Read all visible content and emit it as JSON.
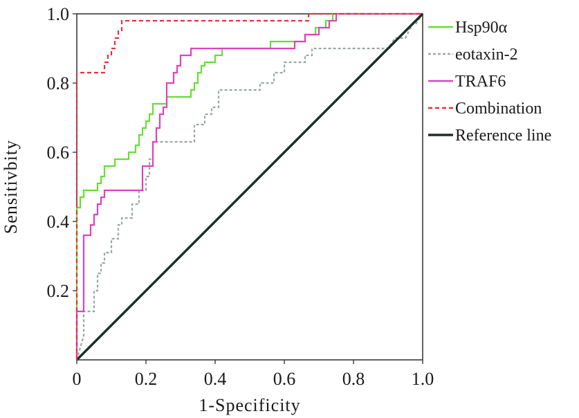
{
  "chart_data": {
    "type": "line",
    "title": "",
    "xlabel": "1-Specificity",
    "ylabel": "Sensitivbity",
    "xlim": [
      0,
      1
    ],
    "ylim": [
      0,
      1
    ],
    "x_ticks": [
      "0",
      "0.2",
      "0.4",
      "0.6",
      "0.8",
      "1.0"
    ],
    "y_ticks": [
      "0.2",
      "0.4",
      "0.6",
      "0.8",
      "1.0"
    ],
    "grid": false,
    "legend_position": "right",
    "series": [
      {
        "name": "Hsp90α",
        "color": "#66dd33",
        "dash": "solid",
        "points": [
          [
            0,
            0
          ],
          [
            0,
            0.44
          ],
          [
            0.01,
            0.44
          ],
          [
            0.01,
            0.47
          ],
          [
            0.02,
            0.47
          ],
          [
            0.02,
            0.49
          ],
          [
            0.06,
            0.49
          ],
          [
            0.06,
            0.51
          ],
          [
            0.07,
            0.51
          ],
          [
            0.07,
            0.53
          ],
          [
            0.08,
            0.53
          ],
          [
            0.08,
            0.56
          ],
          [
            0.11,
            0.56
          ],
          [
            0.11,
            0.58
          ],
          [
            0.15,
            0.58
          ],
          [
            0.15,
            0.6
          ],
          [
            0.17,
            0.6
          ],
          [
            0.17,
            0.62
          ],
          [
            0.18,
            0.62
          ],
          [
            0.18,
            0.65
          ],
          [
            0.19,
            0.65
          ],
          [
            0.19,
            0.67
          ],
          [
            0.2,
            0.67
          ],
          [
            0.2,
            0.69
          ],
          [
            0.21,
            0.69
          ],
          [
            0.21,
            0.71
          ],
          [
            0.22,
            0.71
          ],
          [
            0.22,
            0.74
          ],
          [
            0.26,
            0.74
          ],
          [
            0.26,
            0.76
          ],
          [
            0.27,
            0.76
          ],
          [
            0.27,
            0.76
          ],
          [
            0.33,
            0.76
          ],
          [
            0.33,
            0.78
          ],
          [
            0.34,
            0.78
          ],
          [
            0.34,
            0.8
          ],
          [
            0.35,
            0.8
          ],
          [
            0.35,
            0.83
          ],
          [
            0.36,
            0.83
          ],
          [
            0.36,
            0.85
          ],
          [
            0.37,
            0.85
          ],
          [
            0.37,
            0.86
          ],
          [
            0.4,
            0.86
          ],
          [
            0.4,
            0.88
          ],
          [
            0.42,
            0.88
          ],
          [
            0.42,
            0.9
          ],
          [
            0.56,
            0.9
          ],
          [
            0.56,
            0.92
          ],
          [
            0.66,
            0.92
          ],
          [
            0.66,
            0.94
          ],
          [
            0.69,
            0.94
          ],
          [
            0.69,
            0.96
          ],
          [
            0.72,
            0.96
          ],
          [
            0.72,
            0.98
          ],
          [
            0.74,
            0.98
          ],
          [
            0.74,
            1.0
          ],
          [
            1.0,
            1.0
          ]
        ]
      },
      {
        "name": "eotaxin-2",
        "color": "#9aa6a6",
        "dash": "4,3",
        "points": [
          [
            0,
            0
          ],
          [
            0.02,
            0.07
          ],
          [
            0.02,
            0.14
          ],
          [
            0.05,
            0.14
          ],
          [
            0.05,
            0.2
          ],
          [
            0.06,
            0.2
          ],
          [
            0.06,
            0.25
          ],
          [
            0.07,
            0.25
          ],
          [
            0.07,
            0.28
          ],
          [
            0.08,
            0.28
          ],
          [
            0.08,
            0.31
          ],
          [
            0.1,
            0.31
          ],
          [
            0.1,
            0.35
          ],
          [
            0.12,
            0.35
          ],
          [
            0.12,
            0.39
          ],
          [
            0.13,
            0.39
          ],
          [
            0.13,
            0.41
          ],
          [
            0.16,
            0.41
          ],
          [
            0.16,
            0.45
          ],
          [
            0.18,
            0.45
          ],
          [
            0.18,
            0.49
          ],
          [
            0.2,
            0.49
          ],
          [
            0.2,
            0.53
          ],
          [
            0.21,
            0.53
          ],
          [
            0.21,
            0.58
          ],
          [
            0.22,
            0.58
          ],
          [
            0.22,
            0.63
          ],
          [
            0.34,
            0.63
          ],
          [
            0.34,
            0.68
          ],
          [
            0.37,
            0.68
          ],
          [
            0.37,
            0.71
          ],
          [
            0.39,
            0.71
          ],
          [
            0.39,
            0.73
          ],
          [
            0.41,
            0.73
          ],
          [
            0.41,
            0.78
          ],
          [
            0.53,
            0.78
          ],
          [
            0.53,
            0.8
          ],
          [
            0.57,
            0.8
          ],
          [
            0.57,
            0.83
          ],
          [
            0.6,
            0.83
          ],
          [
            0.6,
            0.86
          ],
          [
            0.66,
            0.86
          ],
          [
            0.66,
            0.88
          ],
          [
            0.68,
            0.88
          ],
          [
            0.68,
            0.9
          ],
          [
            0.9,
            0.9
          ],
          [
            0.92,
            0.93
          ],
          [
            0.95,
            0.93
          ],
          [
            0.97,
            0.97
          ],
          [
            0.98,
            0.97
          ],
          [
            1.0,
            1.0
          ]
        ]
      },
      {
        "name": "TRAF6",
        "color": "#e040c0",
        "dash": "solid",
        "points": [
          [
            0,
            0
          ],
          [
            0.0,
            0.14
          ],
          [
            0.02,
            0.14
          ],
          [
            0.02,
            0.36
          ],
          [
            0.04,
            0.36
          ],
          [
            0.04,
            0.39
          ],
          [
            0.05,
            0.39
          ],
          [
            0.05,
            0.42
          ],
          [
            0.06,
            0.42
          ],
          [
            0.06,
            0.45
          ],
          [
            0.07,
            0.45
          ],
          [
            0.07,
            0.47
          ],
          [
            0.08,
            0.47
          ],
          [
            0.08,
            0.49
          ],
          [
            0.19,
            0.49
          ],
          [
            0.19,
            0.56
          ],
          [
            0.22,
            0.56
          ],
          [
            0.22,
            0.63
          ],
          [
            0.23,
            0.63
          ],
          [
            0.23,
            0.67
          ],
          [
            0.24,
            0.67
          ],
          [
            0.24,
            0.71
          ],
          [
            0.25,
            0.71
          ],
          [
            0.25,
            0.73
          ],
          [
            0.26,
            0.73
          ],
          [
            0.26,
            0.8
          ],
          [
            0.28,
            0.8
          ],
          [
            0.28,
            0.83
          ],
          [
            0.29,
            0.83
          ],
          [
            0.29,
            0.85
          ],
          [
            0.3,
            0.85
          ],
          [
            0.3,
            0.88
          ],
          [
            0.33,
            0.88
          ],
          [
            0.33,
            0.9
          ],
          [
            0.63,
            0.9
          ],
          [
            0.63,
            0.92
          ],
          [
            0.66,
            0.92
          ],
          [
            0.66,
            0.94
          ],
          [
            0.7,
            0.94
          ],
          [
            0.7,
            0.96
          ],
          [
            0.73,
            0.96
          ],
          [
            0.73,
            0.98
          ],
          [
            0.75,
            0.98
          ],
          [
            0.75,
            1.0
          ],
          [
            1.0,
            1.0
          ]
        ]
      },
      {
        "name": "Combination",
        "color": "#e8303a",
        "dash": "6,4",
        "points": [
          [
            0,
            0
          ],
          [
            0,
            0.83
          ],
          [
            0.08,
            0.83
          ],
          [
            0.08,
            0.86
          ],
          [
            0.09,
            0.86
          ],
          [
            0.09,
            0.88
          ],
          [
            0.1,
            0.88
          ],
          [
            0.1,
            0.9
          ],
          [
            0.11,
            0.9
          ],
          [
            0.11,
            0.93
          ],
          [
            0.12,
            0.93
          ],
          [
            0.12,
            0.95
          ],
          [
            0.13,
            0.95
          ],
          [
            0.13,
            0.98
          ],
          [
            0.67,
            0.98
          ],
          [
            0.67,
            1.0
          ],
          [
            1.0,
            1.0
          ]
        ]
      },
      {
        "name": "Reference line",
        "color": "#1e2e2a",
        "dash": "solid",
        "points": [
          [
            0,
            0
          ],
          [
            1.0,
            1.0
          ]
        ]
      }
    ]
  }
}
